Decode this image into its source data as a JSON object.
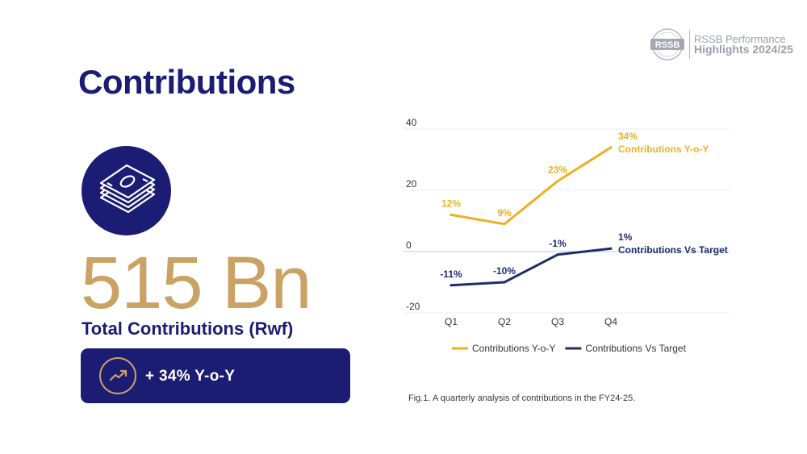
{
  "header": {
    "logo_text": "RSSB",
    "logo_line1": "RSSB Performance",
    "logo_line2": "Highlights 2024/25"
  },
  "page_title": "Contributions",
  "kpi": {
    "value": "515 Bn",
    "caption": "Total Contributions (Rwf)",
    "growth": "+ 34% Y-o-Y",
    "icon": "money-stack-icon",
    "growth_icon": "trending-up-icon"
  },
  "colors": {
    "navy": "#1b1c74",
    "gold": "#caa263",
    "series_yoy": "#edb021",
    "series_target": "#1f2d6b"
  },
  "chart_data": {
    "type": "line",
    "categories": [
      "Q1",
      "Q2",
      "Q3",
      "Q4"
    ],
    "ylim": [
      -20,
      40
    ],
    "yticks": [
      "40",
      "20",
      "0",
      "-20"
    ],
    "ytick_values": [
      40,
      20,
      0,
      -20
    ],
    "grid": true,
    "legend_position": "bottom",
    "series": [
      {
        "name": "Contributions Y-o-Y",
        "values": [
          12,
          9,
          23,
          34
        ],
        "labels": [
          "12%",
          "9%",
          "23%",
          "34%"
        ],
        "end_label": "Contributions Y-o-Y",
        "color": "#edb021"
      },
      {
        "name": "Contributions Vs Target",
        "values": [
          -11,
          -10,
          -1,
          1
        ],
        "labels": [
          "-11%",
          "-10%",
          "-1%",
          "1%"
        ],
        "end_label": "Contributions Vs Target",
        "color": "#1f2d6b"
      }
    ]
  },
  "figure_caption": "Fig.1. A quarterly analysis of contributions in the FY24-25."
}
